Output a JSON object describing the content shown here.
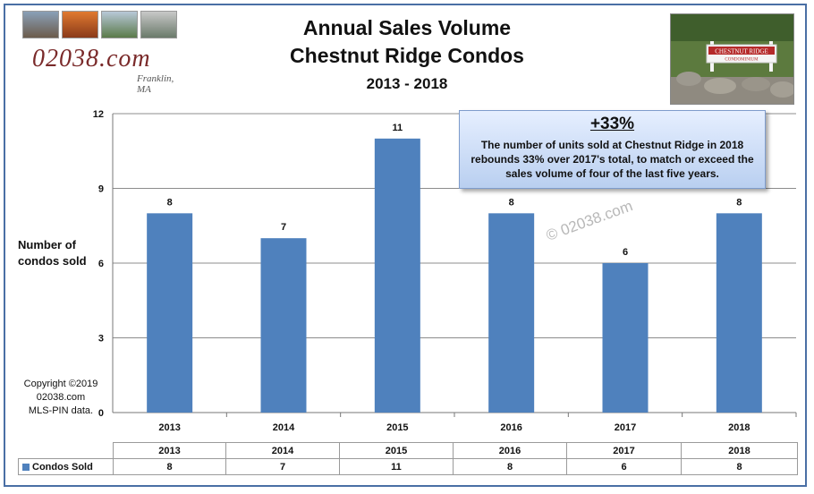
{
  "header": {
    "title_line1": "Annual Sales Volume",
    "title_line2": "Chestnut Ridge Condos",
    "subtitle": "2013 - 2018"
  },
  "logo": {
    "text": "02038.com",
    "sub": "Franklin, MA"
  },
  "sign": {
    "line1": "CHESTNUT RIDGE",
    "line2": "CONDOMINIUM"
  },
  "y_axis_label": "Number of condos sold",
  "copyright": {
    "line1": "Copyright ©2019",
    "line2": "02038.com",
    "line3": "MLS-PIN data."
  },
  "callout": {
    "headline": "+33%",
    "text": "The number of units sold at Chestnut Ridge in 2018 rebounds 33% over 2017's total, to match or exceed the sales volume of four of the last five years."
  },
  "watermark": "© 02038.com",
  "colors": {
    "bar": "#4f81bd",
    "frame": "#4a6fa5",
    "grid": "#8c8c8c"
  },
  "chart_data": {
    "type": "bar",
    "categories": [
      "2013",
      "2014",
      "2015",
      "2016",
      "2017",
      "2018"
    ],
    "series": [
      {
        "name": "Condos Sold",
        "values": [
          8,
          7,
          11,
          8,
          6,
          8
        ]
      }
    ],
    "ylim": [
      0,
      12
    ],
    "yticks": [
      0,
      3,
      6,
      9,
      12
    ],
    "grid": true,
    "data_labels": true,
    "data_table": true
  }
}
